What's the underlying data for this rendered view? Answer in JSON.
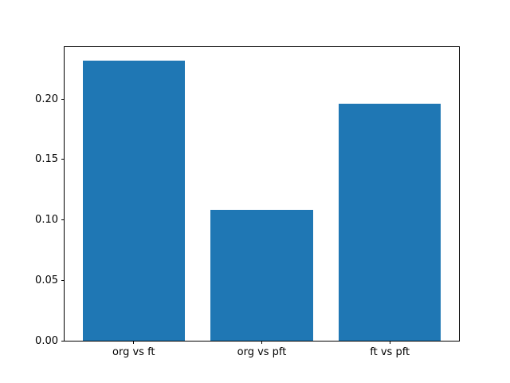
{
  "chart_data": {
    "type": "bar",
    "title": "",
    "xlabel": "",
    "ylabel": "",
    "categories": [
      "org vs ft",
      "org vs pft",
      "ft vs pft"
    ],
    "values": [
      0.232,
      0.108,
      0.196
    ],
    "yticks": [
      0.0,
      0.05,
      0.1,
      0.15,
      0.2
    ],
    "ytick_labels": [
      "0.00",
      "0.05",
      "0.10",
      "0.15",
      "0.20"
    ],
    "ylim": [
      0,
      0.243
    ],
    "xlim": [
      -0.54,
      2.54
    ],
    "bar_width_units": 0.8,
    "bar_color": "#1f77b4",
    "grid": false,
    "legend_position": "none",
    "background_color": "#ffffff",
    "spine_color": "#000000"
  }
}
